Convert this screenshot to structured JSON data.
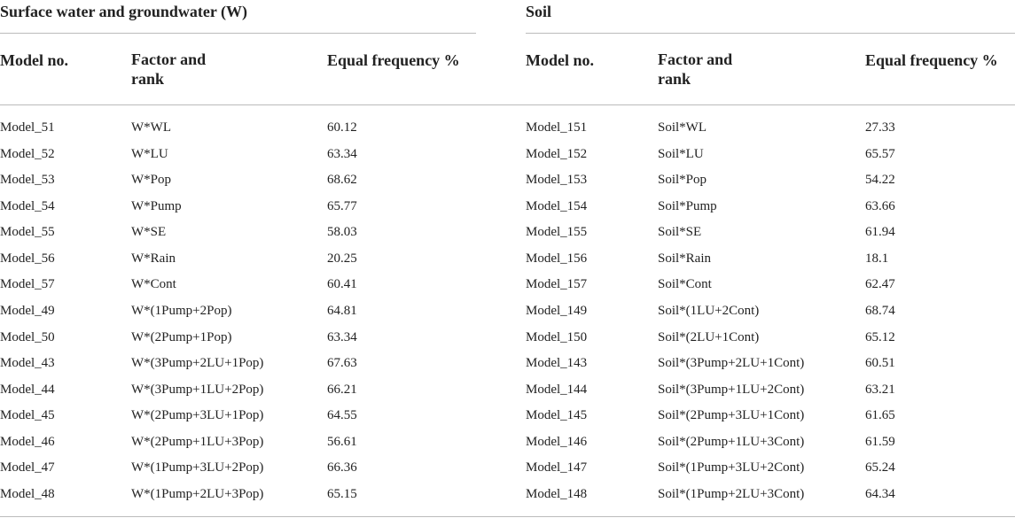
{
  "groups": [
    {
      "title": "Surface water and groundwater (W)",
      "headers": [
        "Model no.",
        "Factor and rank",
        "Equal frequency %"
      ],
      "rows": [
        [
          "Model_51",
          "W*WL",
          "60.12"
        ],
        [
          "Model_52",
          "W*LU",
          "63.34"
        ],
        [
          "Model_53",
          "W*Pop",
          "68.62"
        ],
        [
          "Model_54",
          "W*Pump",
          "65.77"
        ],
        [
          "Model_55",
          "W*SE",
          "58.03"
        ],
        [
          "Model_56",
          "W*Rain",
          "20.25"
        ],
        [
          "Model_57",
          "W*Cont",
          "60.41"
        ],
        [
          "Model_49",
          "W*(1Pump+2Pop)",
          "64.81"
        ],
        [
          "Model_50",
          "W*(2Pump+1Pop)",
          "63.34"
        ],
        [
          "Model_43",
          "W*(3Pump+2LU+1Pop)",
          "67.63"
        ],
        [
          "Model_44",
          "W*(3Pump+1LU+2Pop)",
          "66.21"
        ],
        [
          "Model_45",
          "W*(2Pump+3LU+1Pop)",
          "64.55"
        ],
        [
          "Model_46",
          "W*(2Pump+1LU+3Pop)",
          "56.61"
        ],
        [
          "Model_47",
          "W*(1Pump+3LU+2Pop)",
          "66.36"
        ],
        [
          "Model_48",
          "W*(1Pump+2LU+3Pop)",
          "65.15"
        ]
      ]
    },
    {
      "title": "Soil",
      "headers": [
        "Model no.",
        "Factor and rank",
        "Equal frequency %"
      ],
      "rows": [
        [
          "Model_151",
          "Soil*WL",
          "27.33"
        ],
        [
          "Model_152",
          "Soil*LU",
          "65.57"
        ],
        [
          "Model_153",
          "Soil*Pop",
          "54.22"
        ],
        [
          "Model_154",
          "Soil*Pump",
          "63.66"
        ],
        [
          "Model_155",
          "Soil*SE",
          "61.94"
        ],
        [
          "Model_156",
          "Soil*Rain",
          "18.1"
        ],
        [
          "Model_157",
          "Soil*Cont",
          "62.47"
        ],
        [
          "Model_149",
          "Soil*(1LU+2Cont)",
          "68.74"
        ],
        [
          "Model_150",
          "Soil*(2LU+1Cont)",
          "65.12"
        ],
        [
          "Model_143",
          "Soil*(3Pump+2LU+1Cont)",
          "60.51"
        ],
        [
          "Model_144",
          "Soil*(3Pump+1LU+2Cont)",
          "63.21"
        ],
        [
          "Model_145",
          "Soil*(2Pump+3LU+1Cont)",
          "61.65"
        ],
        [
          "Model_146",
          "Soil*(2Pump+1LU+3Cont)",
          "61.59"
        ],
        [
          "Model_147",
          "Soil*(1Pump+3LU+2Cont)",
          "65.24"
        ],
        [
          "Model_148",
          "Soil*(1Pump+2LU+3Cont)",
          "64.34"
        ]
      ]
    }
  ]
}
